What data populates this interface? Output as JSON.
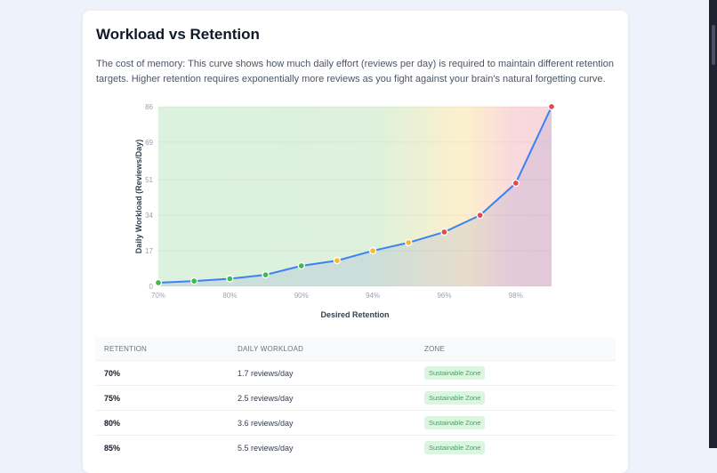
{
  "title": "Workload vs Retention",
  "description": "The cost of memory: This curve shows how much daily effort (reviews per day) is required to maintain different retention targets. Higher retention requires exponentially more reviews as you fight against your brain's natural forgetting curve.",
  "chart_data": {
    "type": "line",
    "xlabel": "Desired Retention",
    "ylabel": "Daily Workload (Reviews/Day)",
    "x": [
      "70%",
      "75%",
      "80%",
      "85%",
      "90%",
      "92%",
      "94%",
      "95%",
      "96%",
      "97%",
      "98%",
      "99%"
    ],
    "x_tick_labels": [
      "70%",
      "80%",
      "90%",
      "94%",
      "96%",
      "98%"
    ],
    "values": [
      1.7,
      2.5,
      3.6,
      5.5,
      9.8,
      12.3,
      17,
      20.9,
      26,
      34,
      49.4,
      86
    ],
    "point_zones": [
      "green",
      "green",
      "green",
      "green",
      "green",
      "yellow",
      "yellow",
      "yellow",
      "red",
      "red",
      "red",
      "red"
    ],
    "y_ticks": [
      "0",
      "17",
      "34",
      "51",
      "69",
      "86"
    ],
    "ylim": [
      0,
      86
    ],
    "grid": true,
    "colors": {
      "line": "#3b82f6",
      "green": "#3fb950",
      "yellow": "#f5b82e",
      "red": "#e5484d"
    }
  },
  "table": {
    "headers": [
      "RETENTION",
      "DAILY WORKLOAD",
      "ZONE"
    ],
    "rows": [
      [
        "70%",
        "1.7 reviews/day",
        "Sustainable Zone"
      ],
      [
        "75%",
        "2.5 reviews/day",
        "Sustainable Zone"
      ],
      [
        "80%",
        "3.6 reviews/day",
        "Sustainable Zone"
      ],
      [
        "85%",
        "5.5 reviews/day",
        "Sustainable Zone"
      ]
    ]
  }
}
